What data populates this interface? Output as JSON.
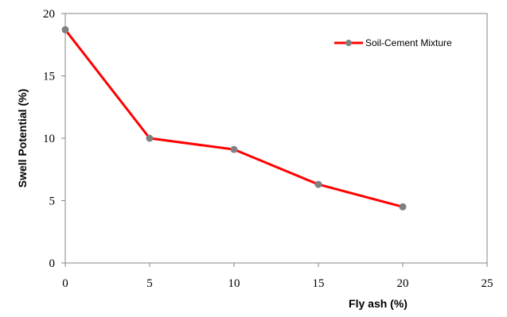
{
  "chart_data": {
    "type": "line",
    "title": "",
    "xlabel": "Fly ash (%)",
    "ylabel": "Swell Potential (%)",
    "xlim": [
      0,
      25
    ],
    "ylim": [
      0,
      20
    ],
    "xticks": [
      0,
      5,
      10,
      15,
      20,
      25
    ],
    "yticks": [
      0,
      5,
      10,
      15,
      20
    ],
    "grid": false,
    "legend_position": "top-right",
    "series": [
      {
        "name": "Soil-Cement Mixture",
        "line_color": "#ff0000",
        "marker_color": "#808080",
        "x": [
          0,
          5,
          10,
          15,
          20
        ],
        "y": [
          18.7,
          10.0,
          9.1,
          6.3,
          4.5
        ]
      }
    ]
  }
}
